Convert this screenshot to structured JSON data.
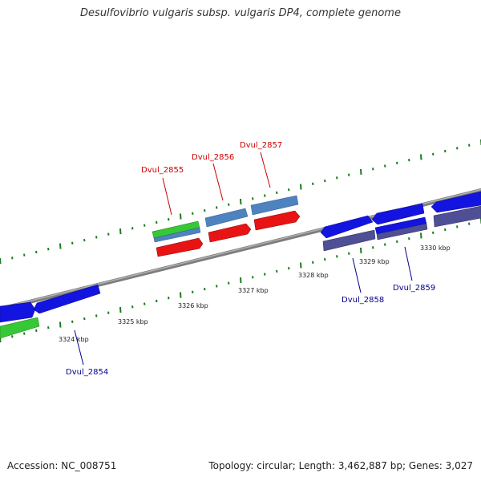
{
  "title": "Desulfovibrio vulgaris subsp. vulgaris DP4, complete genome",
  "footer": {
    "accession_label": "Accession:",
    "accession": "NC_008751",
    "topology_label": "Topology:",
    "topology": "circular",
    "length_label": "Length:",
    "length": "3,462,887 bp",
    "genes_label": "Genes:",
    "genes": "3,027"
  },
  "scale": {
    "unit": "kbp",
    "labels": [
      "3324 kbp",
      "3325 kbp",
      "3326 kbp",
      "3327 kbp",
      "3328 kbp",
      "3329 kbp",
      "3330 kbp"
    ]
  },
  "gene_labels": {
    "forward": [
      "Dvul_2855",
      "Dvul_2856",
      "Dvul_2857"
    ],
    "reverse": [
      "Dvul_2854",
      "Dvul_2858",
      "Dvul_2859"
    ]
  },
  "colors": {
    "background": "#ffffff",
    "backbone": "#8c8c8c",
    "tick": "#1e7a1e",
    "cds_blue": "#1414e0",
    "cds_steel": "#4f83c0",
    "cds_red": "#e81414",
    "cds_green": "#36c836",
    "cds_slate": "#4f4f96",
    "label_forward": "#cc0000",
    "label_reverse": "#00008b"
  }
}
